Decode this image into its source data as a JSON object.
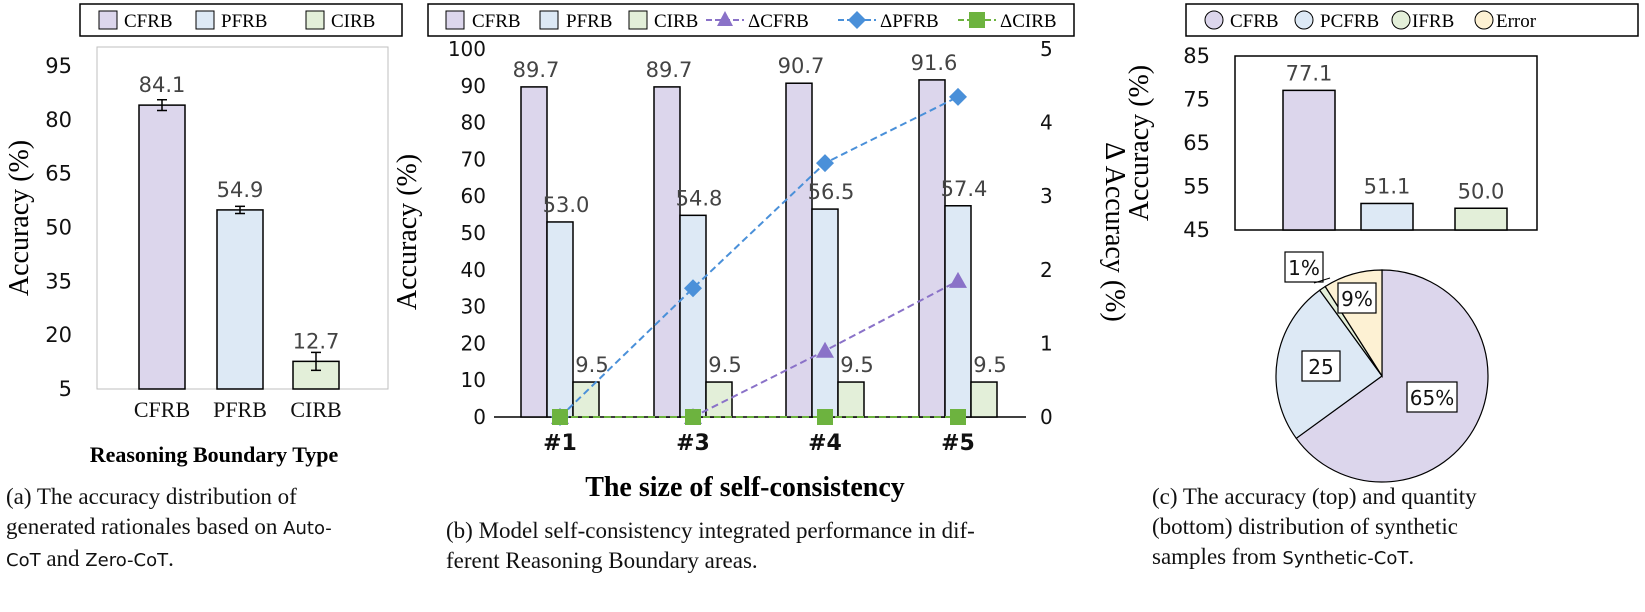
{
  "colors": {
    "cfrb": "#dcd6ec",
    "pfrb": "#dde9f5",
    "cirb": "#e3efd9",
    "error": "#fdf1d3",
    "delta_cfrb": "#8a72c8",
    "delta_pfrb": "#4a90d9",
    "delta_cirb": "#6db33f"
  },
  "chart_data": [
    {
      "type": "bar",
      "legend": [
        "CFRB",
        "PFRB",
        "CIRB"
      ],
      "categories": [
        "CFRB",
        "PFRB",
        "CIRB"
      ],
      "values": [
        84.1,
        54.9,
        12.7
      ],
      "value_labels": [
        "84.1",
        "54.9",
        "12.7"
      ],
      "error": [
        1.5,
        1.0,
        2.5
      ],
      "xlabel": "Reasoning Boundary Type",
      "ylabel": "Accuracy (%)",
      "ylim": [
        5,
        95
      ],
      "yticks": [
        "5",
        "20",
        "35",
        "50",
        "65",
        "80",
        "95"
      ],
      "grid": false,
      "caption": {
        "line1": "(a) The accuracy distribution of",
        "line2a": "generated rationales based on ",
        "line2b": "Auto-",
        "line3a": "CoT",
        "line3b": " and ",
        "line3c": "Zero-CoT",
        "line3d": "."
      }
    },
    {
      "type": "bar",
      "legend": [
        "CFRB",
        "PFRB",
        "CIRB",
        "ΔCFRB",
        "ΔPFRB",
        "ΔCIRB"
      ],
      "categories": [
        "#1",
        "#3",
        "#4",
        "#5"
      ],
      "series": [
        {
          "name": "CFRB",
          "values": [
            89.7,
            89.7,
            90.7,
            91.6
          ]
        },
        {
          "name": "PFRB",
          "values": [
            53.0,
            54.8,
            56.5,
            57.4
          ]
        },
        {
          "name": "CIRB",
          "values": [
            9.5,
            9.5,
            9.5,
            9.5
          ]
        }
      ],
      "value_labels": [
        [
          "89.7",
          "89.7",
          "90.7",
          "91.6"
        ],
        [
          "53.0",
          "54.8",
          "56.5",
          "57.4"
        ],
        [
          "9.5",
          "9.5",
          "9.5",
          "9.5"
        ]
      ],
      "line_series": [
        {
          "name": "ΔCFRB",
          "values": [
            0,
            0,
            0.9,
            1.85
          ]
        },
        {
          "name": "ΔPFRB",
          "values": [
            0,
            1.75,
            3.45,
            4.35
          ]
        },
        {
          "name": "ΔCIRB",
          "values": [
            0,
            0,
            0,
            0
          ]
        }
      ],
      "xlabel": "The size of self-consistency",
      "ylabel": "Accuracy (%)",
      "y2label": "Δ Accuracy (%)",
      "ylim": [
        0,
        100
      ],
      "y2lim": [
        0,
        5
      ],
      "yticks": [
        "0",
        "10",
        "20",
        "30",
        "40",
        "50",
        "60",
        "70",
        "80",
        "90",
        "100"
      ],
      "y2ticks": [
        "0",
        "1",
        "2",
        "3",
        "4",
        "5"
      ],
      "grid": false,
      "caption": {
        "line1": "(b) Model self-consistency integrated performance in dif-",
        "line2": "ferent Reasoning Boundary areas."
      }
    },
    {
      "type": "bar",
      "legend": [
        "CFRB",
        "PCFRB",
        "IFRB",
        "Error"
      ],
      "categories": [
        "CFRB",
        "PCFRB",
        "IFRB"
      ],
      "values": [
        77.1,
        51.1,
        50.0
      ],
      "value_labels": [
        "77.1",
        "51.1",
        "50.0"
      ],
      "ylabel": "Accuracy (%)",
      "ylim": [
        45,
        85
      ],
      "yticks": [
        "45",
        "55",
        "65",
        "75",
        "85"
      ],
      "grid": false
    },
    {
      "type": "pie",
      "slices": [
        {
          "name": "CFRB",
          "value": 65,
          "label": "65%"
        },
        {
          "name": "PCFRB",
          "value": 25,
          "label": "25"
        },
        {
          "name": "IFRB",
          "value": 1,
          "label": "1%"
        },
        {
          "name": "Error",
          "value": 9,
          "label": "9%"
        }
      ],
      "caption": {
        "line1": "(c) The accuracy (top) and quantity",
        "line2": "(bottom) distribution of synthetic",
        "line3a": "samples from ",
        "line3b": "Synthetic-CoT",
        "line3c": "."
      }
    }
  ]
}
